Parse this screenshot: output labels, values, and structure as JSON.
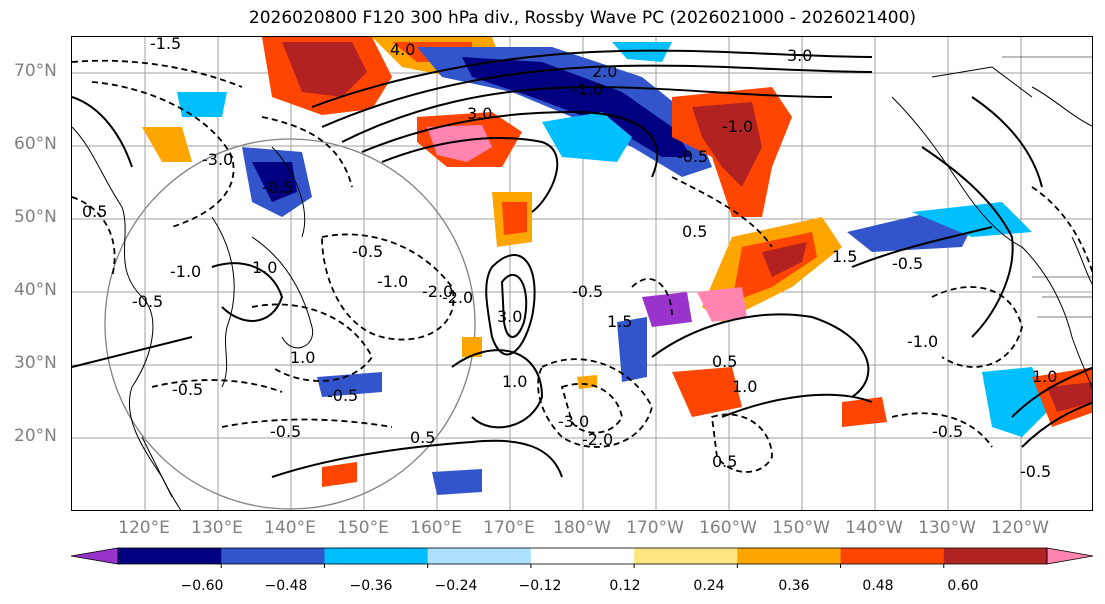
{
  "title": "2026020800 F120 300 hPa div., Rossby Wave PC (2026021000 - 2026021400)",
  "map": {
    "lat_labels": [
      "70°N",
      "60°N",
      "50°N",
      "40°N",
      "30°N",
      "20°N"
    ],
    "lon_labels": [
      "120°E",
      "130°E",
      "140°E",
      "150°E",
      "160°E",
      "170°E",
      "180°W",
      "170°W",
      "160°W",
      "150°W",
      "140°W",
      "130°W",
      "120°W"
    ],
    "contour_labels": [
      "-1.5",
      "4.0",
      "3.0",
      "-3.0",
      "2.0",
      "-1.0",
      "3.0",
      "0.5",
      "-2.0",
      "-1.0",
      "-0.5",
      "3.0",
      "-0.5",
      "1.0",
      "-2.0",
      "-1.0",
      "-0.5",
      "-0.5",
      "-0.5",
      "1.0",
      "0.5",
      "-0.5",
      "1.5",
      "1.5",
      "0.5",
      "-0.5",
      "-1.0",
      "0.5",
      "1.0",
      "0.5",
      "-3.0",
      "-2.0",
      "-0.5",
      "-1.0",
      "-0.5",
      "-0.5",
      "1.0",
      "-0.5",
      "1.0"
    ]
  },
  "colorbar": {
    "tick_labels": [
      "−0.60",
      "−0.48",
      "−0.36",
      "−0.24",
      "−0.12",
      "0.12",
      "0.24",
      "0.36",
      "0.48",
      "0.60"
    ],
    "colors": [
      "#9933cc",
      "#000080",
      "#3355cc",
      "#00bfff",
      "#aee0ff",
      "#ffffff",
      "#ffe680",
      "#ffa500",
      "#ff4500",
      "#b22222",
      "#ff85b0"
    ]
  }
}
